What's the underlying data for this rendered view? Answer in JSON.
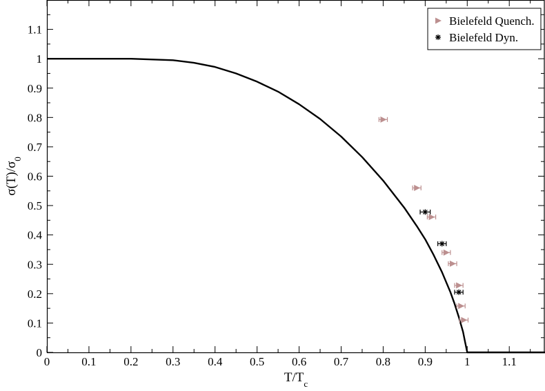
{
  "chart_data": {
    "type": "scatter",
    "xlabel": "T/T",
    "xlabel_sub": "c",
    "ylabel": "σ(T)/σ",
    "ylabel_sub": "0",
    "xlim": [
      0,
      1.185
    ],
    "ylim": [
      0,
      1.2
    ],
    "x_ticks": [
      {
        "v": 0,
        "label": "0"
      },
      {
        "v": 0.1,
        "label": "0.1"
      },
      {
        "v": 0.2,
        "label": "0.2"
      },
      {
        "v": 0.3,
        "label": "0.3"
      },
      {
        "v": 0.4,
        "label": "0.4"
      },
      {
        "v": 0.5,
        "label": "0.5"
      },
      {
        "v": 0.6,
        "label": "0.6"
      },
      {
        "v": 0.7,
        "label": "0.7"
      },
      {
        "v": 0.8,
        "label": "0.8"
      },
      {
        "v": 0.9,
        "label": "0.9"
      },
      {
        "v": 1.0,
        "label": "1"
      },
      {
        "v": 1.1,
        "label": "1.1"
      }
    ],
    "y_ticks": [
      {
        "v": 0,
        "label": "0"
      },
      {
        "v": 0.1,
        "label": "0.1"
      },
      {
        "v": 0.2,
        "label": "0.2"
      },
      {
        "v": 0.3,
        "label": "0.3"
      },
      {
        "v": 0.4,
        "label": "0.4"
      },
      {
        "v": 0.5,
        "label": "0.5"
      },
      {
        "v": 0.6,
        "label": "0.6"
      },
      {
        "v": 0.7,
        "label": "0.7"
      },
      {
        "v": 0.8,
        "label": "0.8"
      },
      {
        "v": 0.9,
        "label": "0.9"
      },
      {
        "v": 1.0,
        "label": "1"
      },
      {
        "v": 1.1,
        "label": "1.1"
      }
    ],
    "grid": false,
    "legend_position": "top-right",
    "curve": {
      "color": "#000000",
      "points": [
        [
          0.0,
          1.0
        ],
        [
          0.2,
          1.0
        ],
        [
          0.3,
          0.995
        ],
        [
          0.35,
          0.986
        ],
        [
          0.4,
          0.972
        ],
        [
          0.45,
          0.95
        ],
        [
          0.5,
          0.922
        ],
        [
          0.55,
          0.888
        ],
        [
          0.6,
          0.845
        ],
        [
          0.65,
          0.795
        ],
        [
          0.7,
          0.735
        ],
        [
          0.75,
          0.665
        ],
        [
          0.8,
          0.585
        ],
        [
          0.85,
          0.493
        ],
        [
          0.88,
          0.43
        ],
        [
          0.9,
          0.385
        ],
        [
          0.92,
          0.332
        ],
        [
          0.94,
          0.273
        ],
        [
          0.96,
          0.205
        ],
        [
          0.97,
          0.165
        ],
        [
          0.98,
          0.12
        ],
        [
          0.99,
          0.07
        ],
        [
          0.995,
          0.035
        ],
        [
          1.0,
          0.0
        ],
        [
          1.185,
          0.0
        ]
      ]
    },
    "series": [
      {
        "name": "Bielefeld Quench.",
        "marker": "triangle-right",
        "color": "#bc8f8f",
        "points": [
          {
            "x": 0.8,
            "y": 0.793,
            "xerr": 0.01
          },
          {
            "x": 0.88,
            "y": 0.56,
            "xerr": 0.01
          },
          {
            "x": 0.915,
            "y": 0.461,
            "xerr": 0.01
          },
          {
            "x": 0.95,
            "y": 0.34,
            "xerr": 0.01
          },
          {
            "x": 0.965,
            "y": 0.302,
            "xerr": 0.01
          },
          {
            "x": 0.98,
            "y": 0.228,
            "xerr": 0.01
          },
          {
            "x": 0.985,
            "y": 0.158,
            "xerr": 0.01
          },
          {
            "x": 0.992,
            "y": 0.11,
            "xerr": 0.01
          }
        ]
      },
      {
        "name": "Bielefeld Dyn.",
        "marker": "asterisk",
        "color": "#000000",
        "points": [
          {
            "x": 0.9,
            "y": 0.478,
            "xerr": 0.012
          },
          {
            "x": 0.94,
            "y": 0.37,
            "xerr": 0.01
          },
          {
            "x": 0.98,
            "y": 0.205,
            "xerr": 0.01
          }
        ]
      }
    ]
  }
}
